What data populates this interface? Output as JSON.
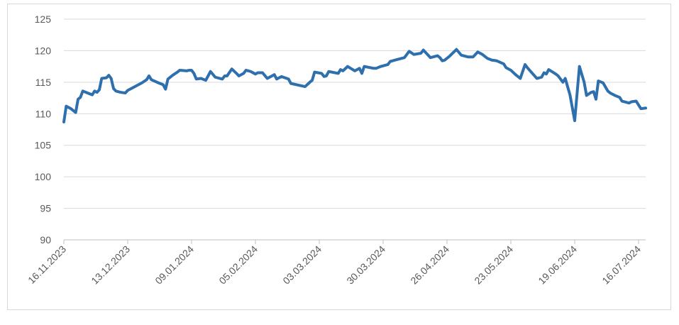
{
  "chart_data": {
    "type": "line",
    "x": [
      "16.11.2023",
      "17.11.2023",
      "19.11.2023",
      "21.11.2023",
      "22.11.2023",
      "23.11.2023",
      "24.11.2023",
      "26.11.2023",
      "28.11.2023",
      "29.11.2023",
      "30.11.2023",
      "01.12.2023",
      "02.12.2023",
      "04.12.2023",
      "05.12.2023",
      "06.12.2023",
      "07.12.2023",
      "08.12.2023",
      "10.12.2023",
      "12.12.2023",
      "13.12.2023",
      "16.12.2023",
      "19.12.2023",
      "21.12.2023",
      "22.12.2023",
      "23.12.2023",
      "26.12.2023",
      "28.12.2023",
      "29.12.2023",
      "30.12.2023",
      "01.01.2024",
      "03.01.2024",
      "04.01.2024",
      "07.01.2024",
      "08.01.2024",
      "09.01.2024",
      "10.01.2024",
      "11.01.2024",
      "13.01.2024",
      "15.01.2024",
      "17.01.2024",
      "19.01.2024",
      "22.01.2024",
      "23.01.2024",
      "24.01.2024",
      "26.01.2024",
      "28.01.2024",
      "29.01.2024",
      "31.01.2024",
      "01.02.2024",
      "03.02.2024",
      "05.02.2024",
      "06.02.2024",
      "08.02.2024",
      "10.02.2024",
      "13.02.2024",
      "14.02.2024",
      "16.02.2024",
      "19.02.2024",
      "20.02.2024",
      "26.02.2024",
      "28.02.2024",
      "29.02.2024",
      "01.03.2024",
      "04.03.2024",
      "05.03.2024",
      "06.03.2024",
      "07.03.2024",
      "11.03.2024",
      "12.03.2024",
      "13.03.2024",
      "15.03.2024",
      "18.03.2024",
      "20.03.2024",
      "21.03.2024",
      "22.03.2024",
      "26.03.2024",
      "27.03.2024",
      "29.03.2024",
      "01.04.2024",
      "02.04.2024",
      "05.04.2024",
      "08.04.2024",
      "10.04.2024",
      "12.04.2024",
      "15.04.2024",
      "16.04.2024",
      "19.04.2024",
      "22.04.2024",
      "23.04.2024",
      "24.04.2024",
      "25.04.2024",
      "27.04.2024",
      "30.04.2024",
      "02.05.2024",
      "05.05.2024",
      "07.05.2024",
      "09.05.2024",
      "11.05.2024",
      "13.05.2024",
      "15.05.2024",
      "17.05.2024",
      "20.05.2024",
      "21.05.2024",
      "23.05.2024",
      "25.05.2024",
      "27.05.2024",
      "29.05.2024",
      "30.05.2024",
      "03.06.2024",
      "05.06.2024",
      "06.06.2024",
      "07.06.2024",
      "08.06.2024",
      "11.06.2024",
      "12.06.2024",
      "14.06.2024",
      "15.06.2024",
      "17.06.2024",
      "19.06.2024",
      "21.06.2024",
      "23.06.2024",
      "24.06.2024",
      "26.06.2024",
      "27.06.2024",
      "28.06.2024",
      "29.06.2024",
      "01.07.2024",
      "03.07.2024",
      "04.07.2024",
      "06.07.2024",
      "08.07.2024",
      "09.07.2024",
      "12.07.2024",
      "13.07.2024",
      "15.07.2024",
      "17.07.2024",
      "19.07.2024"
    ],
    "series": [
      {
        "color": "#2e6fad",
        "values": [
          108.7,
          111.2,
          110.8,
          110.2,
          112.3,
          112.6,
          113.6,
          113.3,
          113.0,
          113.6,
          113.4,
          113.8,
          115.6,
          115.7,
          116.1,
          115.6,
          114.0,
          113.6,
          113.4,
          113.3,
          113.7,
          114.3,
          114.9,
          115.4,
          116.0,
          115.4,
          114.9,
          114.6,
          113.9,
          115.5,
          116.1,
          116.6,
          116.9,
          116.8,
          116.9,
          116.9,
          116.4,
          115.5,
          115.6,
          115.3,
          116.7,
          115.8,
          115.5,
          116.0,
          116.0,
          117.1,
          116.4,
          116.0,
          116.4,
          116.9,
          116.7,
          116.3,
          116.5,
          116.5,
          115.6,
          116.2,
          115.5,
          115.9,
          115.5,
          114.8,
          114.3,
          115.0,
          115.3,
          116.6,
          116.4,
          115.9,
          116.0,
          116.7,
          116.4,
          117.0,
          116.8,
          117.5,
          116.8,
          117.2,
          116.4,
          117.5,
          117.2,
          117.2,
          117.5,
          117.8,
          118.3,
          118.6,
          118.9,
          119.9,
          119.4,
          119.6,
          120.1,
          118.9,
          119.2,
          118.9,
          118.4,
          118.5,
          119.1,
          120.2,
          119.3,
          119.0,
          119.0,
          119.8,
          119.4,
          118.8,
          118.5,
          118.4,
          117.9,
          117.3,
          116.9,
          116.2,
          115.6,
          117.8,
          117.3,
          115.6,
          115.8,
          116.5,
          116.3,
          117.0,
          116.3,
          116.0,
          115.0,
          115.6,
          113.0,
          108.9,
          117.5,
          115.0,
          112.9,
          113.4,
          113.5,
          112.3,
          115.2,
          114.9,
          113.6,
          113.3,
          112.9,
          112.6,
          112.0,
          111.7,
          111.9,
          112.0,
          110.8,
          110.9
        ]
      }
    ],
    "xlim": [
      "16.11.2023",
      "19.07.2024"
    ],
    "xticks": [
      "16.11.2023",
      "13.12.2023",
      "09.01.2024",
      "05.02.2024",
      "03.03.2024",
      "30.03.2024",
      "26.04.2024",
      "23.05.2024",
      "19.06.2024",
      "16.07.2024"
    ],
    "ylim": [
      90,
      125
    ],
    "yticks": [
      90,
      95,
      100,
      105,
      110,
      115,
      120,
      125
    ],
    "grid": true
  }
}
